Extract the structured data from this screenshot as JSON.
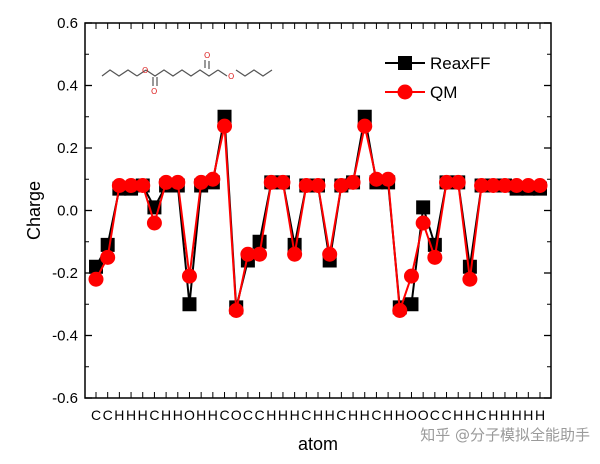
{
  "chart_data": {
    "type": "line",
    "xlabel": "atom",
    "ylabel": "Charge",
    "ylim": [
      -0.6,
      0.6
    ],
    "yticks": [
      "0.6",
      "0.4",
      "0.2",
      "0.0",
      "-0.2",
      "-0.4",
      "-0.6"
    ],
    "categories": [
      "C",
      "C",
      "H",
      "H",
      "H",
      "C",
      "H",
      "H",
      "O",
      "H",
      "H",
      "C",
      "O",
      "C",
      "C",
      "H",
      "H",
      "H",
      "C",
      "H",
      "H",
      "C",
      "H",
      "H",
      "C",
      "H",
      "H",
      "O",
      "O",
      "C",
      "C",
      "H",
      "H",
      "C",
      "H",
      "H",
      "H",
      "H",
      "H"
    ],
    "grid": false,
    "legend_position": "top-right",
    "series": [
      {
        "name": "ReaxFF",
        "color": "#000000",
        "marker": "square",
        "values": [
          -0.18,
          -0.11,
          0.07,
          0.07,
          0.08,
          0.01,
          0.08,
          0.08,
          -0.3,
          0.08,
          0.09,
          0.3,
          -0.31,
          -0.16,
          -0.1,
          0.09,
          0.09,
          -0.11,
          0.08,
          0.08,
          -0.16,
          0.08,
          0.09,
          0.3,
          0.09,
          0.09,
          -0.31,
          -0.3,
          0.01,
          -0.11,
          0.09,
          0.09,
          -0.18,
          0.08,
          0.08,
          0.08,
          0.07,
          0.07,
          0.07
        ]
      },
      {
        "name": "QM",
        "color": "#ff0000",
        "marker": "circle",
        "values": [
          -0.22,
          -0.15,
          0.08,
          0.08,
          0.08,
          -0.04,
          0.09,
          0.09,
          -0.21,
          0.09,
          0.1,
          0.27,
          -0.32,
          -0.14,
          -0.14,
          0.09,
          0.09,
          -0.14,
          0.08,
          0.08,
          -0.14,
          0.08,
          0.09,
          0.27,
          0.1,
          0.1,
          -0.32,
          -0.21,
          -0.04,
          -0.15,
          0.09,
          0.09,
          -0.22,
          0.08,
          0.08,
          0.08,
          0.08,
          0.08,
          0.08
        ]
      }
    ]
  },
  "watermark": "知乎 @分子模拟全能助手"
}
